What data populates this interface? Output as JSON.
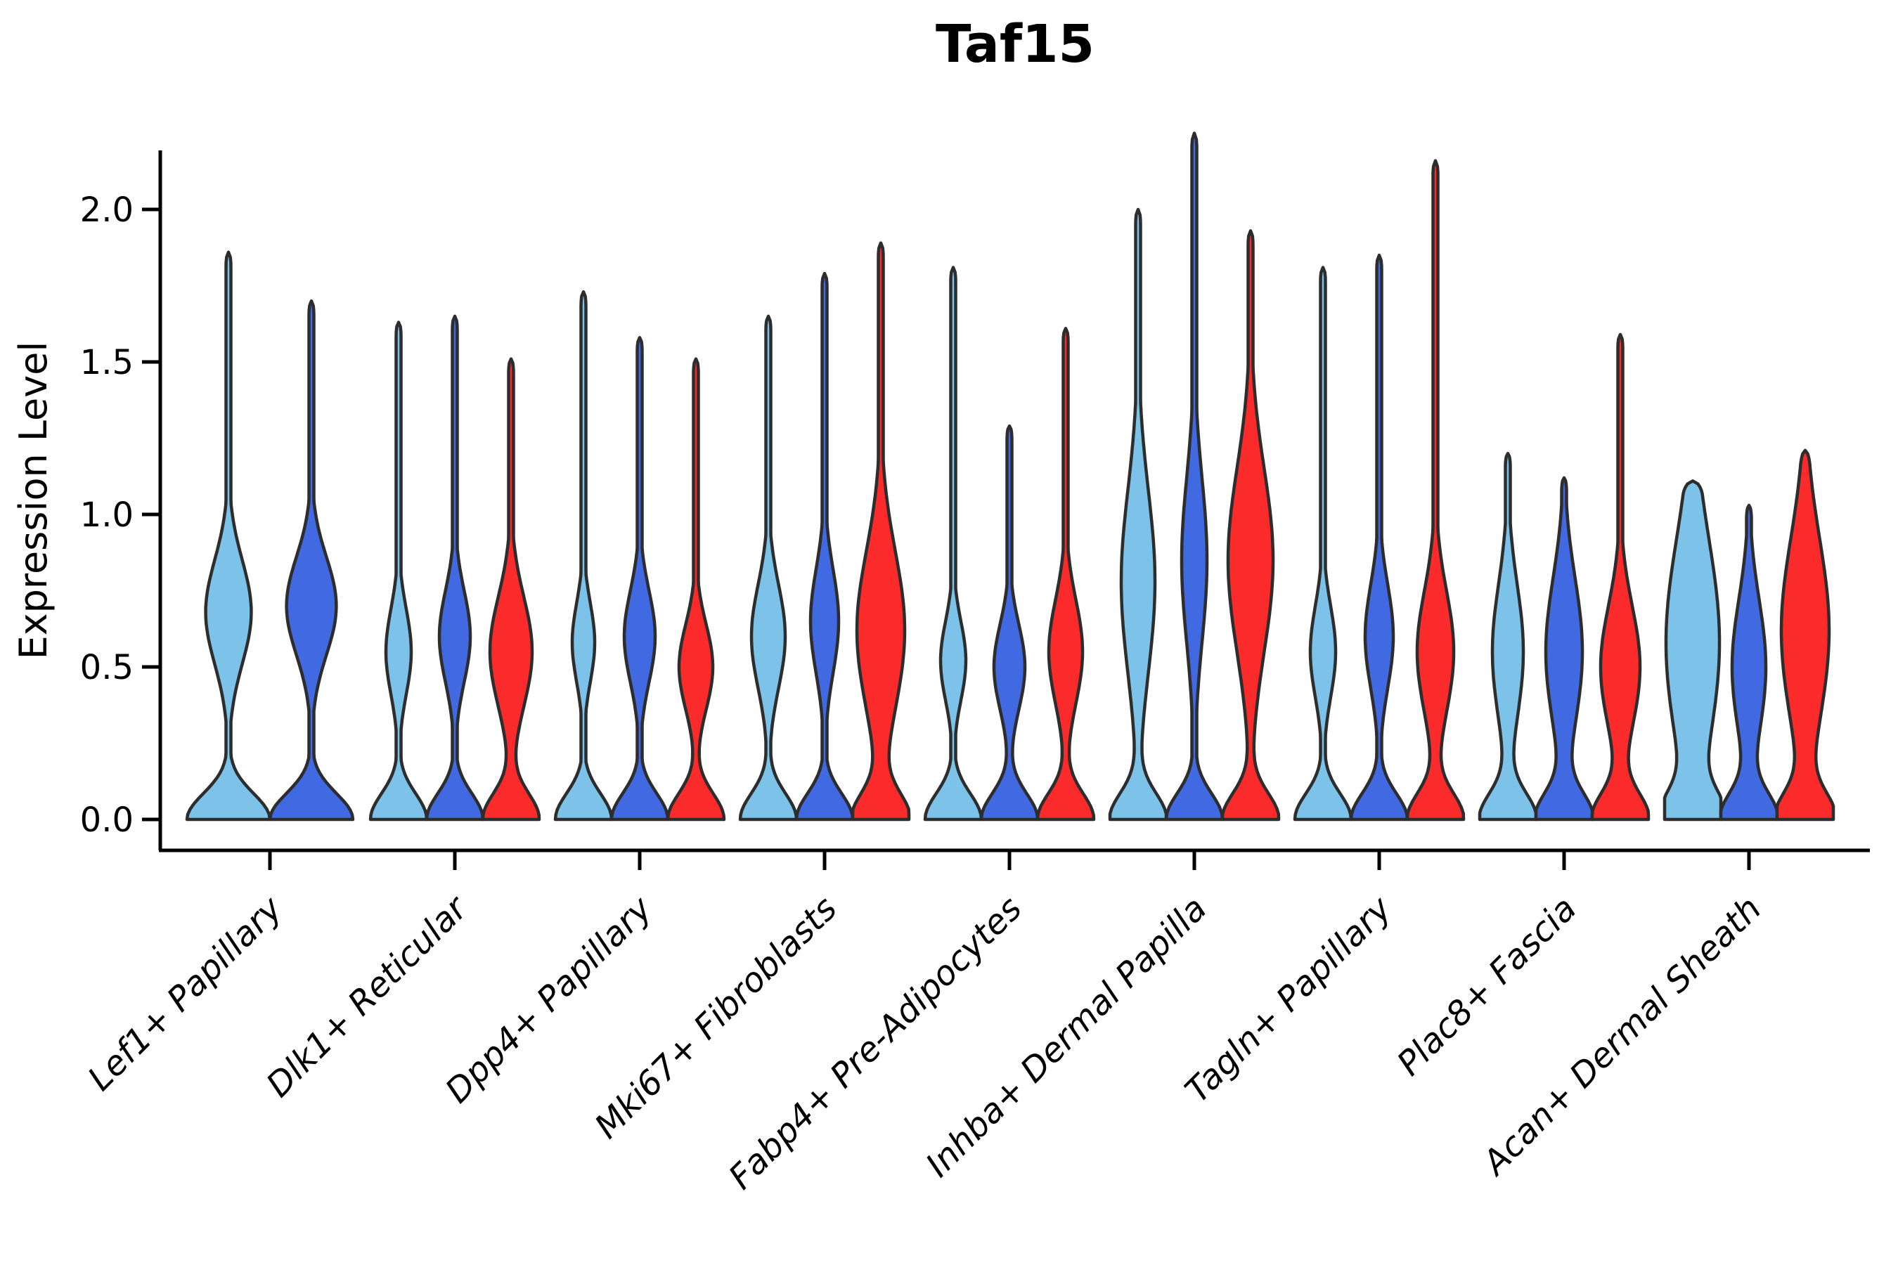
{
  "title": "Taf15",
  "y_axis": {
    "label": "Expression Level",
    "ticks": [
      "0.0",
      "0.5",
      "1.0",
      "1.5",
      "2.0"
    ],
    "tick_values": [
      0.0,
      0.5,
      1.0,
      1.5,
      2.0
    ]
  },
  "x_axis": {
    "categories": [
      "Lef1+ Papillary",
      "Dlk1+ Reticular",
      "Dpp4+ Papillary",
      "Mki67+ Fibroblasts",
      "Fabp4+ Pre-Adipocytes",
      "Inhba+ Dermal Papilla",
      "Tagln+ Papillary",
      "Plac8+ Fascia",
      "Acan+ Dermal Sheath"
    ]
  },
  "chart_data": {
    "type": "violin",
    "title": "Taf15",
    "xlabel": "",
    "ylabel": "Expression Level",
    "ylim": [
      -0.1,
      2.2
    ],
    "yticks": [
      0.0,
      0.5,
      1.0,
      1.5,
      2.0
    ],
    "grid": false,
    "legend": "none",
    "palette": {
      "skyblue": "#7DC2E8",
      "royalblue": "#4169E1",
      "red": "#FB2B2B",
      "outline": "#2D2D2D",
      "axis": "#000000"
    },
    "categories": [
      "Lef1+ Papillary",
      "Dlk1+ Reticular",
      "Dpp4+ Papillary",
      "Mki67+ Fibroblasts",
      "Fabp4+ Pre-Adipocytes",
      "Inhba+ Dermal Papilla",
      "Tagln+ Papillary",
      "Plac8+ Fascia",
      "Acan+ Dermal Sheath"
    ],
    "groups": [
      {
        "category": "Lef1+ Papillary",
        "violins": [
          {
            "hue": "skyblue",
            "max": 1.86,
            "mode": 0.68,
            "mode_sd": 0.17,
            "mode_amp": 0.55
          },
          {
            "hue": "royalblue",
            "max": 1.7,
            "mode": 0.7,
            "mode_sd": 0.16,
            "mode_amp": 0.6
          }
        ]
      },
      {
        "category": "Dlk1+ Reticular",
        "violins": [
          {
            "hue": "skyblue",
            "max": 1.63,
            "mode": 0.55,
            "mode_sd": 0.14,
            "mode_amp": 0.45
          },
          {
            "hue": "royalblue",
            "max": 1.65,
            "mode": 0.6,
            "mode_sd": 0.15,
            "mode_amp": 0.55
          },
          {
            "hue": "red",
            "max": 1.51,
            "mode": 0.55,
            "mode_sd": 0.18,
            "mode_amp": 0.75
          }
        ]
      },
      {
        "category": "Dpp4+ Papillary",
        "violins": [
          {
            "hue": "skyblue",
            "max": 1.73,
            "mode": 0.58,
            "mode_sd": 0.13,
            "mode_amp": 0.4
          },
          {
            "hue": "royalblue",
            "max": 1.58,
            "mode": 0.6,
            "mode_sd": 0.15,
            "mode_amp": 0.55
          },
          {
            "hue": "red",
            "max": 1.51,
            "mode": 0.5,
            "mode_sd": 0.14,
            "mode_amp": 0.6
          }
        ]
      },
      {
        "category": "Mki67+ Fibroblasts",
        "violins": [
          {
            "hue": "skyblue",
            "max": 1.65,
            "mode": 0.6,
            "mode_sd": 0.17,
            "mode_amp": 0.6
          },
          {
            "hue": "royalblue",
            "max": 1.79,
            "mode": 0.65,
            "mode_sd": 0.17,
            "mode_amp": 0.5
          },
          {
            "hue": "red",
            "max": 1.89,
            "mode": 0.62,
            "mode_sd": 0.26,
            "mode_amp": 0.85
          }
        ]
      },
      {
        "category": "Fabp4+ Pre-Adipocytes",
        "violins": [
          {
            "hue": "skyblue",
            "max": 1.81,
            "mode": 0.52,
            "mode_sd": 0.13,
            "mode_amp": 0.45
          },
          {
            "hue": "royalblue",
            "max": 1.29,
            "mode": 0.5,
            "mode_sd": 0.14,
            "mode_amp": 0.55
          },
          {
            "hue": "red",
            "max": 1.61,
            "mode": 0.55,
            "mode_sd": 0.17,
            "mode_amp": 0.6
          }
        ]
      },
      {
        "category": "Inhba+ Dermal Papilla",
        "violins": [
          {
            "hue": "skyblue",
            "max": 2.0,
            "mode": 0.78,
            "mode_sd": 0.3,
            "mode_amp": 0.6
          },
          {
            "hue": "royalblue",
            "max": 2.25,
            "mode": 0.85,
            "mode_sd": 0.27,
            "mode_amp": 0.45
          },
          {
            "hue": "red",
            "max": 1.93,
            "mode": 0.85,
            "mode_sd": 0.3,
            "mode_amp": 0.8
          }
        ]
      },
      {
        "category": "Tagln+ Papillary",
        "violins": [
          {
            "hue": "skyblue",
            "max": 1.81,
            "mode": 0.55,
            "mode_sd": 0.15,
            "mode_amp": 0.45
          },
          {
            "hue": "royalblue",
            "max": 1.85,
            "mode": 0.6,
            "mode_sd": 0.17,
            "mode_amp": 0.5
          },
          {
            "hue": "red",
            "max": 2.16,
            "mode": 0.55,
            "mode_sd": 0.2,
            "mode_amp": 0.65
          }
        ]
      },
      {
        "category": "Plac8+ Fascia",
        "violins": [
          {
            "hue": "skyblue",
            "max": 1.2,
            "mode": 0.55,
            "mode_sd": 0.22,
            "mode_amp": 0.55
          },
          {
            "hue": "royalblue",
            "max": 1.12,
            "mode": 0.55,
            "mode_sd": 0.24,
            "mode_amp": 0.65
          },
          {
            "hue": "red",
            "max": 1.59,
            "mode": 0.5,
            "mode_sd": 0.2,
            "mode_amp": 0.7
          }
        ]
      },
      {
        "category": "Acan+ Dermal Sheath",
        "violins": [
          {
            "hue": "skyblue",
            "max": 1.11,
            "mode": 0.58,
            "mode_sd": 0.34,
            "mode_amp": 0.95
          },
          {
            "hue": "royalblue",
            "max": 1.03,
            "mode": 0.5,
            "mode_sd": 0.22,
            "mode_amp": 0.6
          },
          {
            "hue": "red",
            "max": 1.21,
            "mode": 0.62,
            "mode_sd": 0.3,
            "mode_amp": 0.85
          }
        ]
      }
    ]
  }
}
